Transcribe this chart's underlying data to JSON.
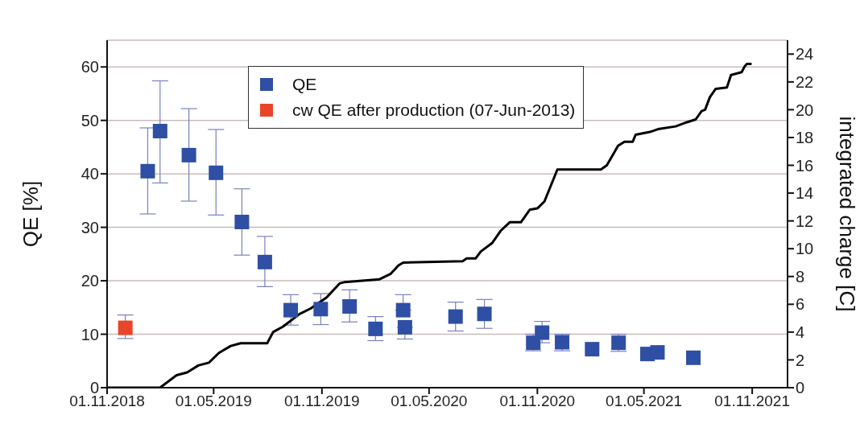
{
  "chart_data": {
    "type": "scatter",
    "xlabel": null,
    "ylabel": "QE [%]",
    "y2label": "integrated charge [C]",
    "xlim": [
      "2018-11-01",
      "2021-12-31"
    ],
    "xticks": [
      {
        "value": "2018-11-01",
        "label": "01.11.2018"
      },
      {
        "value": "2019-05-01",
        "label": "01.05.2019"
      },
      {
        "value": "2019-11-01",
        "label": "01.11.2019"
      },
      {
        "value": "2020-05-01",
        "label": "01.05.2020"
      },
      {
        "value": "2020-11-01",
        "label": "01.11.2020"
      },
      {
        "value": "2021-05-01",
        "label": "01.05.2021"
      },
      {
        "value": "2021-11-01",
        "label": "01.11.2021"
      }
    ],
    "ylim": [
      0,
      65
    ],
    "yticks": [
      0,
      10,
      20,
      30,
      40,
      50,
      60
    ],
    "y2lim": [
      0,
      25
    ],
    "y2ticks": [
      0,
      2,
      4,
      6,
      8,
      10,
      12,
      14,
      16,
      18,
      20,
      22,
      24
    ],
    "grid": "y",
    "legend": "top",
    "marker": "square",
    "series": [
      {
        "name": "QE",
        "color": "#2e4fa3",
        "x": [
          "2019-01-09",
          "2019-01-30",
          "2019-03-20",
          "2019-05-05",
          "2019-06-18",
          "2019-07-27",
          "2019-09-09",
          "2019-10-30",
          "2019-12-18",
          "2020-01-31",
          "2020-03-18",
          "2020-03-21",
          "2020-06-15",
          "2020-08-03",
          "2020-10-25",
          "2020-11-09",
          "2020-12-13",
          "2021-02-02",
          "2021-03-19",
          "2021-05-07",
          "2021-05-24",
          "2021-07-24"
        ],
        "values": [
          40.5,
          48,
          43.5,
          40.2,
          31,
          23.5,
          14.5,
          14.7,
          15.2,
          11,
          14.5,
          11.3,
          13.3,
          13.8,
          8.4,
          10.3,
          8.5,
          7.2,
          8.4,
          6.3,
          6.6,
          5.6
        ],
        "errors": [
          [
            32.5,
            48.6
          ],
          [
            38.3,
            57.4
          ],
          [
            34.9,
            52.2
          ],
          [
            32.3,
            48.3
          ],
          [
            24.8,
            37.2
          ],
          [
            18.9,
            28.3
          ],
          [
            11.7,
            17.4
          ],
          [
            11.8,
            17.6
          ],
          [
            12.3,
            18.3
          ],
          [
            8.8,
            13.3
          ],
          [
            14.5,
            17.4
          ],
          [
            9.1,
            11.3
          ],
          [
            10.6,
            16.0
          ],
          [
            11.1,
            16.5
          ],
          [
            6.9,
            10.0
          ],
          [
            8.4,
            12.4
          ],
          [
            6.9,
            10.0
          ],
          null,
          [
            6.8,
            10.0
          ],
          null,
          null,
          null
        ]
      },
      {
        "name": "cw QE after production (07-Jun-2013)",
        "color": "#e8452a",
        "x": [
          "2018-12-02"
        ],
        "values": [
          11.2
        ],
        "errors": [
          [
            9.2,
            13.6
          ]
        ]
      },
      {
        "type": "line",
        "axis": "y2",
        "color": "#000000",
        "marker": "none",
        "line_style": "solid",
        "x": [
          "2018-11-01",
          "2019-01-13",
          "2019-01-30",
          "2019-02-27",
          "2019-03-17",
          "2019-04-05",
          "2019-04-23",
          "2019-05-10",
          "2019-05-30",
          "2019-06-16",
          "2019-07-31",
          "2019-08-10",
          "2019-08-27",
          "2019-09-24",
          "2019-10-13",
          "2019-11-09",
          "2019-12-01",
          "2019-12-10",
          "2020-02-07",
          "2020-02-26",
          "2020-03-10",
          "2020-03-18",
          "2020-06-27",
          "2020-07-04",
          "2020-07-19",
          "2020-07-28",
          "2020-08-16",
          "2020-08-31",
          "2020-09-15",
          "2020-10-04",
          "2020-10-19",
          "2020-11-01",
          "2020-11-13",
          "2020-12-05",
          "2021-02-17",
          "2021-02-27",
          "2021-03-18",
          "2021-03-29",
          "2021-04-12",
          "2021-04-17",
          "2021-05-11",
          "2021-05-25",
          "2021-06-24",
          "2021-07-13",
          "2021-07-28",
          "2021-08-07",
          "2021-08-13",
          "2021-08-21",
          "2021-08-31",
          "2021-09-19",
          "2021-09-26",
          "2021-10-14",
          "2021-10-19",
          "2021-10-23",
          "2021-10-31"
        ],
        "values": [
          0,
          0,
          0,
          0.9,
          1.1,
          1.6,
          1.8,
          2.5,
          3.0,
          3.2,
          3.2,
          4.0,
          4.4,
          5.3,
          5.7,
          6.5,
          7.5,
          7.6,
          7.8,
          8.2,
          8.8,
          9.0,
          9.1,
          9.3,
          9.3,
          9.8,
          10.4,
          11.3,
          11.9,
          11.9,
          12.8,
          12.9,
          13.4,
          15.7,
          15.7,
          16.0,
          17.4,
          17.7,
          17.7,
          18.2,
          18.4,
          18.6,
          18.8,
          19.1,
          19.3,
          19.9,
          20.0,
          20.9,
          21.5,
          21.6,
          22.5,
          22.7,
          23.1,
          23.3,
          23.3
        ]
      }
    ]
  }
}
